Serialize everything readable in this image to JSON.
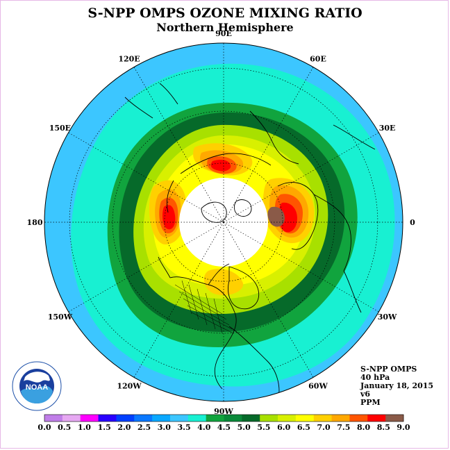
{
  "title": "S-NPP OMPS OZONE MIXING RATIO",
  "subtitle": "Northern Hemisphere",
  "longitude_labels": [
    {
      "text": "90E",
      "lon": 90
    },
    {
      "text": "60E",
      "lon": 60
    },
    {
      "text": "30E",
      "lon": 30
    },
    {
      "text": "0",
      "lon": 0
    },
    {
      "text": "30W",
      "lon": -30
    },
    {
      "text": "60W",
      "lon": -60
    },
    {
      "text": "90W",
      "lon": -90
    },
    {
      "text": "120W",
      "lon": -120
    },
    {
      "text": "150W",
      "lon": -150
    },
    {
      "text": "180",
      "lon": 180
    },
    {
      "text": "150E",
      "lon": 150
    },
    {
      "text": "120E",
      "lon": 120
    }
  ],
  "info": {
    "instrument": "S-NPP OMPS",
    "level": "40 hPa",
    "date": "January 18, 2015",
    "version": "v6",
    "units": "PPM"
  },
  "colorbar": {
    "ticks": [
      "0.0",
      "0.5",
      "1.0",
      "1.5",
      "2.0",
      "2.5",
      "3.0",
      "3.5",
      "4.0",
      "4.5",
      "5.0",
      "5.5",
      "6.0",
      "6.5",
      "7.0",
      "7.5",
      "8.0",
      "8.5",
      "9.0"
    ],
    "colors": [
      "#c07ee8",
      "#e6a8f2",
      "#ff00ff",
      "#2a00ff",
      "#0040ff",
      "#0a78ff",
      "#0aa8ff",
      "#3cc6ff",
      "#18f0d2",
      "#11a43e",
      "#0a8a3a",
      "#066a2a",
      "#a8e000",
      "#d8f000",
      "#ffff00",
      "#ffd000",
      "#ffa800",
      "#ff5500",
      "#ff0000",
      "#8a5a48"
    ]
  },
  "map": {
    "ocean_outer_color": "#3cc6ff",
    "no_data_color": "#ffffff"
  },
  "logo": {
    "text": "NOAA",
    "ring_text": "NATIONAL OCEANIC AND ATMOSPHERIC ADMINISTRATION · U.S. DEPARTMENT OF COMMERCE"
  }
}
